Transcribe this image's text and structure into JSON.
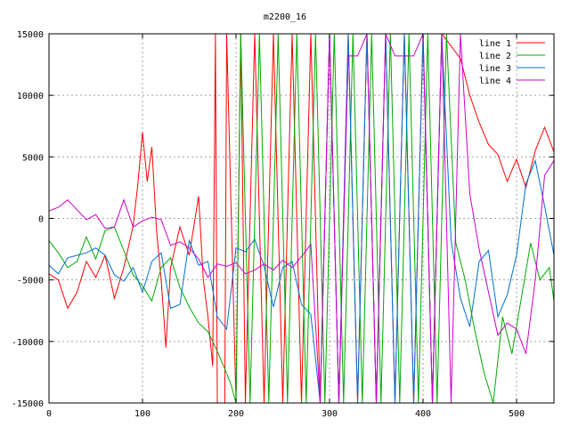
{
  "chart_data": {
    "type": "line",
    "title": "m2200_16",
    "xlabel": "",
    "ylabel": "",
    "xlim": [
      0,
      540
    ],
    "ylim": [
      -15000,
      15000
    ],
    "x_ticks": [
      "0",
      "100",
      "200",
      "300",
      "400",
      "500"
    ],
    "y_ticks": [
      "-15000",
      "-10000",
      "-5000",
      "0",
      "5000",
      "10000",
      "15000"
    ],
    "grid": true,
    "legend": "top-right",
    "series": [
      {
        "name": "line 1",
        "color": "#ff0000",
        "points": [
          [
            0,
            -4500
          ],
          [
            10,
            -5000
          ],
          [
            20,
            -7300
          ],
          [
            30,
            -6000
          ],
          [
            40,
            -3500
          ],
          [
            50,
            -4800
          ],
          [
            60,
            -3000
          ],
          [
            70,
            -6500
          ],
          [
            80,
            -4000
          ],
          [
            90,
            -600
          ],
          [
            95,
            2800
          ],
          [
            100,
            7000
          ],
          [
            105,
            3000
          ],
          [
            110,
            5800
          ],
          [
            115,
            -1000
          ],
          [
            120,
            -5000
          ],
          [
            125,
            -10500
          ],
          [
            130,
            -4000
          ],
          [
            140,
            -700
          ],
          [
            150,
            -3000
          ],
          [
            160,
            1800
          ],
          [
            165,
            -5000
          ],
          [
            170,
            -8000
          ],
          [
            175,
            -12000
          ],
          [
            178,
            15000
          ],
          [
            180,
            -15000
          ],
          [
            188,
            -15000
          ],
          [
            190,
            15000
          ],
          [
            200,
            -15000
          ],
          [
            205,
            15000
          ],
          [
            210,
            -15000
          ],
          [
            220,
            15000
          ],
          [
            230,
            -15000
          ],
          [
            240,
            15000
          ],
          [
            250,
            -15000
          ],
          [
            260,
            15000
          ],
          [
            270,
            -15000
          ],
          [
            280,
            15000
          ],
          [
            290,
            -15000
          ],
          [
            300,
            15000
          ],
          [
            310,
            -15000
          ],
          [
            320,
            15000
          ],
          [
            330,
            -15000
          ],
          [
            340,
            15000
          ],
          [
            350,
            -15000
          ],
          [
            360,
            15000
          ],
          [
            370,
            -15000
          ],
          [
            380,
            15000
          ],
          [
            390,
            -15000
          ],
          [
            400,
            15000
          ],
          [
            410,
            -15000
          ],
          [
            420,
            15000
          ],
          [
            430,
            14000
          ],
          [
            440,
            13000
          ],
          [
            450,
            10000
          ],
          [
            460,
            7800
          ],
          [
            470,
            6000
          ],
          [
            480,
            5200
          ],
          [
            490,
            3000
          ],
          [
            500,
            4800
          ],
          [
            510,
            2500
          ],
          [
            520,
            5500
          ],
          [
            530,
            7400
          ],
          [
            540,
            5400
          ]
        ]
      },
      {
        "name": "line 2",
        "color": "#00aa00",
        "points": [
          [
            0,
            -1800
          ],
          [
            10,
            -2800
          ],
          [
            20,
            -4000
          ],
          [
            30,
            -3500
          ],
          [
            40,
            -1500
          ],
          [
            50,
            -3300
          ],
          [
            60,
            -1000
          ],
          [
            70,
            -700
          ],
          [
            80,
            -2600
          ],
          [
            90,
            -4600
          ],
          [
            100,
            -5500
          ],
          [
            110,
            -6700
          ],
          [
            120,
            -4000
          ],
          [
            130,
            -3200
          ],
          [
            140,
            -5600
          ],
          [
            150,
            -7200
          ],
          [
            160,
            -8500
          ],
          [
            170,
            -9200
          ],
          [
            180,
            -10800
          ],
          [
            190,
            -12600
          ],
          [
            195,
            -13600
          ],
          [
            200,
            -15000
          ],
          [
            205,
            15000
          ],
          [
            215,
            -15000
          ],
          [
            225,
            15000
          ],
          [
            235,
            -15000
          ],
          [
            245,
            15000
          ],
          [
            255,
            -15000
          ],
          [
            265,
            15000
          ],
          [
            275,
            -15000
          ],
          [
            285,
            15000
          ],
          [
            295,
            -15000
          ],
          [
            305,
            15000
          ],
          [
            315,
            -15000
          ],
          [
            325,
            15000
          ],
          [
            335,
            -15000
          ],
          [
            345,
            15000
          ],
          [
            355,
            -15000
          ],
          [
            365,
            15000
          ],
          [
            375,
            -15000
          ],
          [
            385,
            15000
          ],
          [
            395,
            -15000
          ],
          [
            405,
            15000
          ],
          [
            415,
            -15000
          ],
          [
            425,
            15000
          ],
          [
            435,
            -2000
          ],
          [
            445,
            -5000
          ],
          [
            455,
            -9000
          ],
          [
            465,
            -12500
          ],
          [
            475,
            -15000
          ],
          [
            485,
            -8000
          ],
          [
            495,
            -11000
          ],
          [
            505,
            -6500
          ],
          [
            515,
            -2000
          ],
          [
            525,
            -5000
          ],
          [
            535,
            -4000
          ],
          [
            540,
            -6700
          ]
        ]
      },
      {
        "name": "line 3",
        "color": "#0070d0",
        "points": [
          [
            0,
            -3800
          ],
          [
            10,
            -4500
          ],
          [
            20,
            -3200
          ],
          [
            30,
            -3000
          ],
          [
            40,
            -2800
          ],
          [
            50,
            -2400
          ],
          [
            60,
            -3000
          ],
          [
            70,
            -4600
          ],
          [
            80,
            -5100
          ],
          [
            90,
            -4000
          ],
          [
            100,
            -6000
          ],
          [
            110,
            -3500
          ],
          [
            120,
            -2800
          ],
          [
            130,
            -7300
          ],
          [
            140,
            -7000
          ],
          [
            150,
            -1800
          ],
          [
            160,
            -3800
          ],
          [
            170,
            -3500
          ],
          [
            180,
            -8000
          ],
          [
            190,
            -9000
          ],
          [
            200,
            -2400
          ],
          [
            210,
            -2700
          ],
          [
            220,
            -1700
          ],
          [
            230,
            -3900
          ],
          [
            240,
            -7200
          ],
          [
            250,
            -4000
          ],
          [
            260,
            -3500
          ],
          [
            270,
            -7000
          ],
          [
            280,
            -7800
          ],
          [
            290,
            -15000
          ],
          [
            300,
            15000
          ],
          [
            310,
            -15000
          ],
          [
            320,
            15000
          ],
          [
            330,
            -15000
          ],
          [
            340,
            15000
          ],
          [
            350,
            -15000
          ],
          [
            360,
            15000
          ],
          [
            370,
            -15000
          ],
          [
            380,
            15000
          ],
          [
            390,
            -15000
          ],
          [
            400,
            15000
          ],
          [
            410,
            -15000
          ],
          [
            420,
            15000
          ],
          [
            430,
            -1800
          ],
          [
            440,
            -6500
          ],
          [
            450,
            -8800
          ],
          [
            460,
            -3500
          ],
          [
            470,
            -2600
          ],
          [
            480,
            -8000
          ],
          [
            490,
            -6200
          ],
          [
            500,
            -3000
          ],
          [
            510,
            2800
          ],
          [
            520,
            4700
          ],
          [
            530,
            1000
          ],
          [
            540,
            -3000
          ]
        ]
      },
      {
        "name": "line 4",
        "color": "#cc00cc",
        "points": [
          [
            0,
            600
          ],
          [
            10,
            900
          ],
          [
            20,
            1500
          ],
          [
            30,
            700
          ],
          [
            40,
            -100
          ],
          [
            50,
            300
          ],
          [
            60,
            -800
          ],
          [
            70,
            -700
          ],
          [
            80,
            1500
          ],
          [
            90,
            -700
          ],
          [
            100,
            -200
          ],
          [
            110,
            100
          ],
          [
            120,
            -100
          ],
          [
            130,
            -2200
          ],
          [
            140,
            -1900
          ],
          [
            150,
            -2400
          ],
          [
            160,
            -3300
          ],
          [
            170,
            -4800
          ],
          [
            180,
            -3700
          ],
          [
            190,
            -3900
          ],
          [
            200,
            -3600
          ],
          [
            210,
            -4500
          ],
          [
            220,
            -4200
          ],
          [
            230,
            -3700
          ],
          [
            240,
            -4200
          ],
          [
            250,
            -3400
          ],
          [
            260,
            -4000
          ],
          [
            270,
            -3100
          ],
          [
            280,
            -2100
          ],
          [
            290,
            -15000
          ],
          [
            300,
            15000
          ],
          [
            310,
            -15000
          ],
          [
            320,
            13200
          ],
          [
            330,
            13200
          ],
          [
            340,
            15000
          ],
          [
            350,
            -15000
          ],
          [
            360,
            15000
          ],
          [
            370,
            13200
          ],
          [
            390,
            13200
          ],
          [
            400,
            15000
          ],
          [
            410,
            -15000
          ],
          [
            420,
            15000
          ],
          [
            430,
            -15000
          ],
          [
            440,
            15000
          ],
          [
            450,
            2000
          ],
          [
            460,
            -2500
          ],
          [
            470,
            -6000
          ],
          [
            480,
            -9500
          ],
          [
            490,
            -8500
          ],
          [
            500,
            -9000
          ],
          [
            510,
            -11000
          ],
          [
            520,
            -5000
          ],
          [
            530,
            3500
          ],
          [
            540,
            4700
          ]
        ]
      }
    ]
  }
}
